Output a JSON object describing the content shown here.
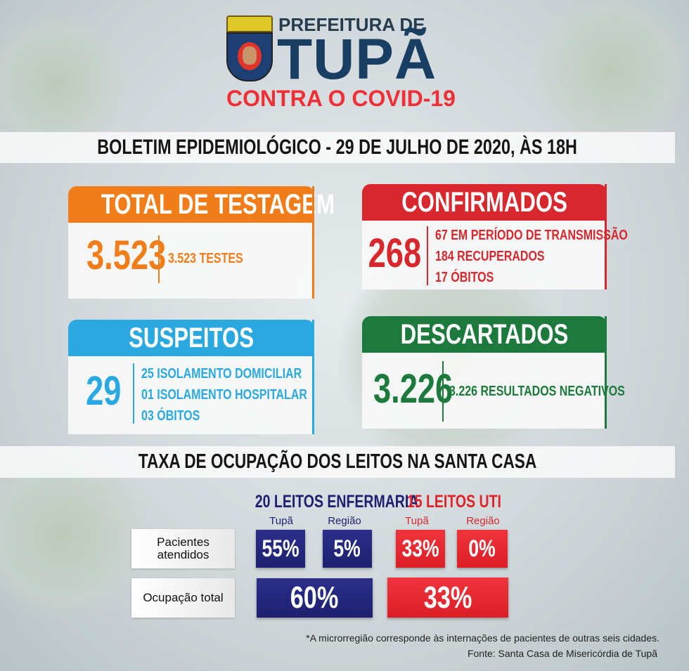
{
  "header": {
    "line1": "PREFEITURA DE",
    "line2": "TUPÃ",
    "tagline": "CONTRA O COVID-19"
  },
  "bulletin_title": "BOLETIM EPIDEMIOLÓGICO - 29 DE JULHO DE 2020, ÀS 18H",
  "cards": {
    "testagem": {
      "title": "TOTAL DE TESTAGEM",
      "value": "3.523",
      "details": [
        "3.523 TESTES"
      ],
      "color": "#f07d1a"
    },
    "confirmados": {
      "title": "CONFIRMADOS",
      "value": "268",
      "details": [
        "67 EM PERÍODO DE TRANSMISSÃO",
        "184 RECUPERADOS",
        "17 ÓBITOS"
      ],
      "color": "#d9272e"
    },
    "suspeitos": {
      "title": "SUSPEITOS",
      "value": "29",
      "details": [
        "25 ISOLAMENTO DOMICILIAR",
        "01 ISOLAMENTO HOSPITALAR",
        "03 ÓBITOS"
      ],
      "color": "#29a9df"
    },
    "descartados": {
      "title": "DESCARTADOS",
      "value": "3.226",
      "details": [
        "3.226 RESULTADOS NEGATIVOS"
      ],
      "color": "#1b7a3c"
    }
  },
  "beds": {
    "title": "TAXA DE OCUPAÇÃO DOS LEITOS NA SANTA CASA",
    "enfermaria": {
      "title": "20 LEITOS ENFERMARIA",
      "col1": "Tupã",
      "col2": "Região",
      "pacientes_tupa": "55%",
      "pacientes_regiao": "5%",
      "total": "60%"
    },
    "uti": {
      "title": "15 LEITOS UTI",
      "col1": "Tupã",
      "col2": "Região",
      "pacientes_tupa": "33%",
      "pacientes_regiao": "0%",
      "total": "33%"
    },
    "row1": "Pacientes atendidos",
    "row2": "Ocupação total"
  },
  "footnote": "*A microrregião corresponde às internações de pacientes de outras seis cidades.",
  "source": "Fonte: Santa Casa de Misericórdia de Tupã"
}
